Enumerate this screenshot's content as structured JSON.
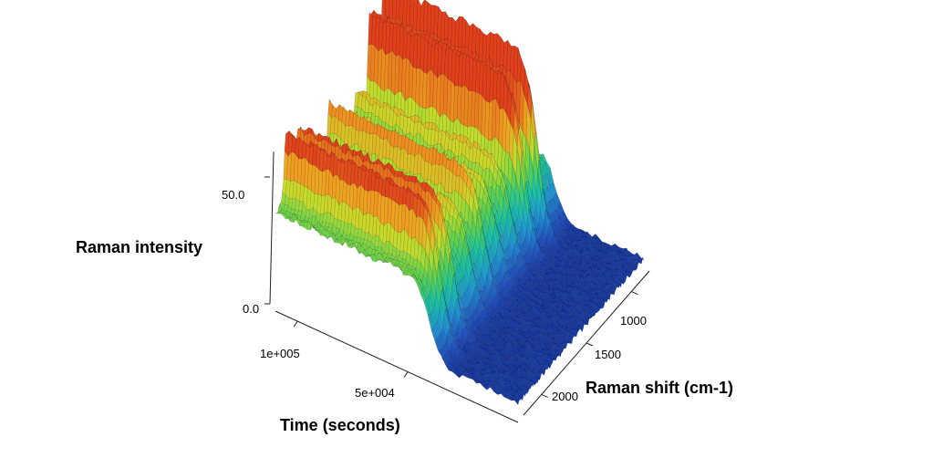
{
  "chart_data": {
    "type": "surface3d",
    "title": "",
    "xlabel": "Raman shift (cm-1)",
    "ylabel": "Time (seconds)",
    "zlabel": "Raman intensity",
    "x_ticks": [
      "1000",
      "1500",
      "2000"
    ],
    "y_ticks": [
      "1e+005",
      "5e+004"
    ],
    "z_ticks": [
      "0.0",
      "50.0"
    ],
    "x_range": [
      800,
      2200
    ],
    "y_range": [
      0,
      110000
    ],
    "z_range": [
      0,
      60
    ],
    "colormap": [
      "#0a1a6e",
      "#1f4fbf",
      "#1e9ad6",
      "#19c7a0",
      "#5fd24a",
      "#c8dc2a",
      "#f0a020",
      "#e0401a"
    ],
    "surface_onset_time": 40000,
    "baseline_before_onset": 5,
    "baseline_after_onset": {
      "x": [
        800,
        1000,
        1200,
        1400,
        1600,
        1800,
        2000,
        2200
      ],
      "z": [
        29,
        30,
        31,
        32,
        33,
        34,
        35,
        36
      ]
    },
    "peaks": [
      {
        "raman_shift": 1000,
        "intensity": 48
      },
      {
        "raman_shift": 1150,
        "intensity": 43
      },
      {
        "raman_shift": 1300,
        "intensity": 16
      },
      {
        "raman_shift": 1450,
        "intensity": 14
      },
      {
        "raman_shift": 1600,
        "intensity": 22
      },
      {
        "raman_shift": 1750,
        "intensity": 14
      },
      {
        "raman_shift": 1950,
        "intensity": 26
      },
      {
        "raman_shift": 2080,
        "intensity": 28
      }
    ]
  }
}
